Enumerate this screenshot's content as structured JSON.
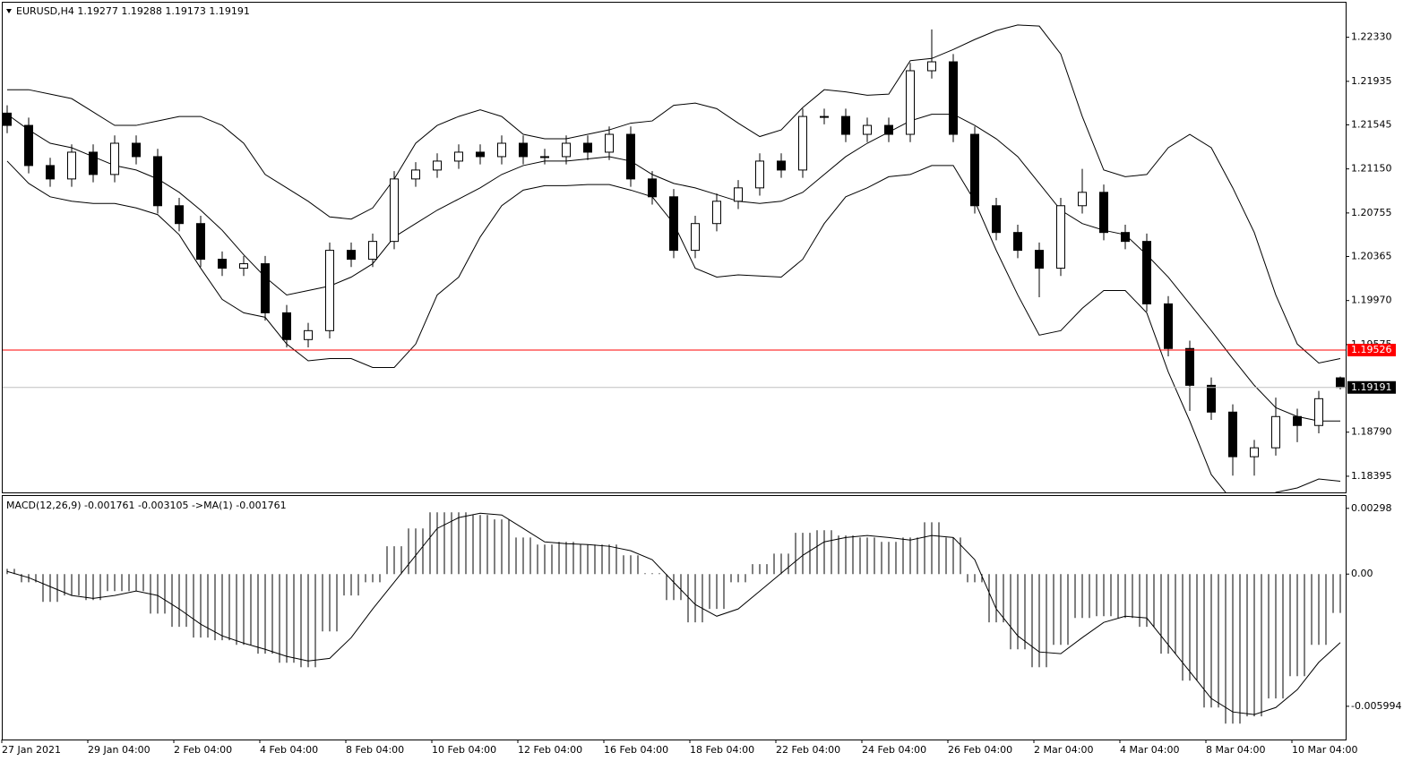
{
  "chart_data": [
    {
      "type": "candlestick",
      "title": "EURUSD,H4  1.19277 1.19288 1.19173 1.19191",
      "categories": [
        "27 Jan 2021",
        null,
        null,
        null,
        "29 Jan 04:00",
        null,
        null,
        null,
        "2 Feb 04:00",
        null,
        null,
        null,
        "4 Feb 04:00",
        null,
        null,
        null,
        "8 Feb 04:00",
        null,
        null,
        null,
        "10 Feb 04:00",
        null,
        null,
        null,
        "12 Feb 04:00",
        null,
        null,
        null,
        "16 Feb 04:00",
        null,
        null,
        null,
        "18 Feb 04:00",
        null,
        null,
        null,
        "22 Feb 04:00",
        null,
        null,
        null,
        "24 Feb 04:00",
        null,
        null,
        null,
        "26 Feb 04:00",
        null,
        null,
        null,
        "2 Mar 04:00",
        null,
        null,
        null,
        "4 Mar 04:00",
        null,
        null,
        null,
        "8 Mar 04:00",
        null,
        null,
        null,
        "10 Mar 04:00",
        null,
        null
      ],
      "open": [
        1.2165,
        1.2154,
        1.2118,
        1.2106,
        1.213,
        1.211,
        1.2138,
        1.2126,
        1.2082,
        1.2066,
        1.2034,
        1.2026,
        1.203,
        1.1986,
        1.1962,
        1.197,
        1.2042,
        1.2034,
        1.205,
        1.2106,
        1.2114,
        1.2122,
        1.213,
        1.2126,
        1.2138,
        1.2126,
        1.2126,
        1.2138,
        1.213,
        1.2146,
        1.2106,
        1.209,
        1.2042,
        1.2066,
        1.2086,
        1.2098,
        1.2122,
        1.2114,
        1.2162,
        1.2162,
        1.2146,
        1.2154,
        1.2146,
        1.2203,
        1.2211,
        1.2146,
        1.2082,
        1.2058,
        1.2042,
        1.2026,
        1.2082,
        1.2094,
        1.2058,
        1.205,
        1.1994,
        1.1954,
        1.1921,
        1.1897,
        1.1857,
        1.1865,
        1.1893,
        1.1885,
        1.19277
      ],
      "high": [
        1.2172,
        1.2161,
        1.2125,
        1.2137,
        1.2137,
        1.2145,
        1.2145,
        1.2133,
        1.2089,
        1.2073,
        1.2041,
        1.2037,
        1.2037,
        1.1993,
        1.1977,
        1.2049,
        1.2049,
        1.2057,
        1.2113,
        1.2121,
        1.2129,
        1.2137,
        1.2137,
        1.2145,
        1.2145,
        1.2133,
        1.2145,
        1.2145,
        1.2153,
        1.2153,
        1.2113,
        1.2097,
        1.2073,
        1.2093,
        1.2105,
        1.2129,
        1.2129,
        1.2169,
        1.2169,
        1.2169,
        1.2161,
        1.2161,
        1.221,
        1.224,
        1.2218,
        1.2153,
        1.2089,
        1.2065,
        1.2049,
        1.2089,
        1.2115,
        1.2101,
        1.2065,
        1.2057,
        1.2001,
        1.1961,
        1.1928,
        1.1904,
        1.1872,
        1.191,
        1.19,
        1.1916,
        1.19288
      ],
      "low": [
        1.2147,
        1.2111,
        1.2099,
        1.2099,
        1.2103,
        1.2103,
        1.2119,
        1.2075,
        1.2059,
        1.2027,
        1.2019,
        1.2019,
        1.1979,
        1.1955,
        1.1955,
        1.1963,
        1.2027,
        1.2027,
        1.2043,
        1.2099,
        1.2107,
        1.2115,
        1.2119,
        1.2119,
        1.2119,
        1.2119,
        1.2119,
        1.2123,
        1.2123,
        1.2099,
        1.2083,
        1.2035,
        1.2035,
        1.2059,
        1.2079,
        1.2091,
        1.2107,
        1.2107,
        1.2155,
        1.2139,
        1.2139,
        1.2139,
        1.2139,
        1.2196,
        1.2139,
        1.2075,
        1.2051,
        1.2035,
        1.2,
        1.2019,
        1.2075,
        1.2051,
        1.2043,
        1.1987,
        1.1947,
        1.1898,
        1.189,
        1.184,
        1.184,
        1.1858,
        1.187,
        1.1878,
        1.19173
      ],
      "close": [
        1.2154,
        1.2118,
        1.2106,
        1.213,
        1.211,
        1.2138,
        1.2126,
        1.2082,
        1.2066,
        1.2034,
        1.2026,
        1.203,
        1.1986,
        1.1962,
        1.197,
        1.2042,
        1.2034,
        1.205,
        1.2106,
        1.2114,
        1.2122,
        1.213,
        1.2126,
        1.2138,
        1.2126,
        1.2126,
        1.2138,
        1.213,
        1.2146,
        1.2106,
        1.209,
        1.2042,
        1.2066,
        1.2086,
        1.2098,
        1.2122,
        1.2114,
        1.2162,
        1.2162,
        1.2146,
        1.2154,
        1.2146,
        1.2203,
        1.2211,
        1.2146,
        1.2082,
        1.2058,
        1.2042,
        1.2026,
        1.2082,
        1.2094,
        1.2058,
        1.205,
        1.1994,
        1.1954,
        1.1921,
        1.1897,
        1.1857,
        1.1865,
        1.1893,
        1.1885,
        1.1909,
        1.19191
      ],
      "upper_band": [
        1.2186,
        1.2186,
        1.2182,
        1.2178,
        1.2166,
        1.2154,
        1.2154,
        1.2158,
        1.2162,
        1.2162,
        1.2154,
        1.2138,
        1.211,
        1.2098,
        1.2086,
        1.2072,
        1.207,
        1.208,
        1.2106,
        1.2138,
        1.2154,
        1.2162,
        1.2168,
        1.2162,
        1.2146,
        1.2142,
        1.2142,
        1.2146,
        1.215,
        1.2156,
        1.2158,
        1.2172,
        1.2174,
        1.2169,
        1.2156,
        1.2144,
        1.215,
        1.217,
        1.2186,
        1.2184,
        1.2181,
        1.2182,
        1.2212,
        1.2214,
        1.2222,
        1.2231,
        1.2239,
        1.2244,
        1.2243,
        1.2218,
        1.2162,
        1.2114,
        1.2108,
        1.211,
        1.2134,
        1.2146,
        1.2134,
        1.2098,
        1.2058,
        1.2002,
        1.1958,
        1.1941,
        1.1945
      ],
      "middle_band": [
        1.2164,
        1.215,
        1.2138,
        1.2134,
        1.2126,
        1.2118,
        1.2114,
        1.2106,
        1.2094,
        1.2078,
        1.206,
        1.2038,
        1.2018,
        1.2002,
        1.2006,
        1.201,
        1.2018,
        1.203,
        1.2054,
        1.2066,
        1.2078,
        1.2088,
        1.2098,
        1.211,
        1.2118,
        1.2122,
        1.2122,
        1.2124,
        1.2126,
        1.2122,
        1.211,
        1.2102,
        1.2098,
        1.2092,
        1.2086,
        1.2084,
        1.2086,
        1.2094,
        1.211,
        1.2126,
        1.2138,
        1.2148,
        1.2158,
        1.2164,
        1.2164,
        1.2154,
        1.2142,
        1.2126,
        1.2102,
        1.2078,
        1.2066,
        1.206,
        1.2056,
        1.2038,
        1.2018,
        1.1994,
        1.197,
        1.1945,
        1.1921,
        1.1901,
        1.1893,
        1.1889,
        1.1889
      ],
      "lower_band": [
        1.2122,
        1.2102,
        1.209,
        1.2086,
        1.2084,
        1.2084,
        1.208,
        1.2074,
        1.2056,
        1.2026,
        1.1998,
        1.1986,
        1.1982,
        1.1958,
        1.1943,
        1.1945,
        1.1945,
        1.1937,
        1.1937,
        1.1958,
        1.2002,
        1.2018,
        1.2054,
        1.2082,
        1.2096,
        1.21,
        1.21,
        1.2101,
        1.2101,
        1.2096,
        1.209,
        1.2066,
        1.2026,
        1.2018,
        1.202,
        1.2019,
        1.2018,
        1.2034,
        1.2066,
        1.209,
        1.2098,
        1.2108,
        1.211,
        1.2118,
        1.2118,
        1.2086,
        1.2042,
        1.2002,
        1.1966,
        1.197,
        1.199,
        1.2006,
        1.2006,
        1.1986,
        1.1933,
        1.1889,
        1.1841,
        1.1817,
        1.1809,
        1.1825,
        1.1829,
        1.1837,
        1.1835
      ],
      "ylim": [
        1.1825,
        1.2264
      ],
      "yticks": [
        {
          "value": 1.2233,
          "label": "1.22330"
        },
        {
          "value": 1.21935,
          "label": "1.21935"
        },
        {
          "value": 1.21545,
          "label": "1.21545"
        },
        {
          "value": 1.2115,
          "label": "1.21150"
        },
        {
          "value": 1.20755,
          "label": "1.20755"
        },
        {
          "value": 1.20365,
          "label": "1.20365"
        },
        {
          "value": 1.1997,
          "label": "1.19970"
        },
        {
          "value": 1.19575,
          "label": "1.19575"
        },
        {
          "value": 1.1879,
          "label": "1.18790"
        },
        {
          "value": 1.18395,
          "label": "1.18395"
        }
      ],
      "level": {
        "value": 1.19526,
        "color": "#ff0000"
      },
      "grid": false
    },
    {
      "type": "macd",
      "title": "MACD(12,26,9) -0.001761 -0.003105  ->MA(1) -0.001761",
      "histogram": [
        0.00024,
        -0.00037,
        -0.00126,
        -0.00097,
        -0.00118,
        -0.00077,
        -0.00077,
        -0.00179,
        -0.00239,
        -0.00288,
        -0.003,
        -0.00321,
        -0.00361,
        -0.00402,
        -0.00422,
        -0.0026,
        -0.00097,
        -0.00037,
        0.00126,
        0.00207,
        0.0028,
        0.0028,
        0.00268,
        0.00248,
        0.00166,
        0.00134,
        0.00146,
        0.00134,
        0.00134,
        0.00085,
        4e-05,
        -0.00118,
        -0.00219,
        -0.00158,
        -0.00037,
        0.00045,
        0.00093,
        0.00187,
        0.00199,
        0.00175,
        0.00166,
        0.00146,
        0.00166,
        0.00235,
        0.00166,
        -0.00037,
        -0.00219,
        -0.00341,
        -0.00422,
        -0.00321,
        -0.00199,
        -0.00191,
        -0.00199,
        -0.00239,
        -0.00361,
        -0.00483,
        -0.00605,
        -0.00678,
        -0.00645,
        -0.00564,
        -0.00463,
        -0.00321,
        -0.001761
      ],
      "signal": [
        0.00012,
        -0.00016,
        -0.00057,
        -0.00097,
        -0.0011,
        -0.00097,
        -0.00077,
        -0.00097,
        -0.00158,
        -0.00227,
        -0.0028,
        -0.00313,
        -0.00341,
        -0.00373,
        -0.00394,
        -0.00382,
        -0.00288,
        -0.00158,
        -0.00037,
        0.00085,
        0.00207,
        0.00256,
        0.00276,
        0.00268,
        0.00207,
        0.00146,
        0.00138,
        0.00134,
        0.00126,
        0.00106,
        0.00065,
        -0.00037,
        -0.00138,
        -0.00191,
        -0.00158,
        -0.00077,
        4e-05,
        0.00085,
        0.00146,
        0.00166,
        0.00175,
        0.00166,
        0.00154,
        0.00175,
        0.00166,
        0.00065,
        -0.00158,
        -0.0028,
        -0.00353,
        -0.00361,
        -0.00288,
        -0.00219,
        -0.00191,
        -0.00199,
        -0.00321,
        -0.00442,
        -0.00564,
        -0.00625,
        -0.00637,
        -0.00605,
        -0.00524,
        -0.004,
        -0.003105
      ],
      "ylim": [
        -0.0075,
        0.0035
      ],
      "yticks": [
        {
          "value": 0.00298,
          "label": "0.00298"
        },
        {
          "value": 0,
          "label": "0.00"
        },
        {
          "value": -0.005994,
          "label": "-0.005994"
        }
      ]
    }
  ]
}
